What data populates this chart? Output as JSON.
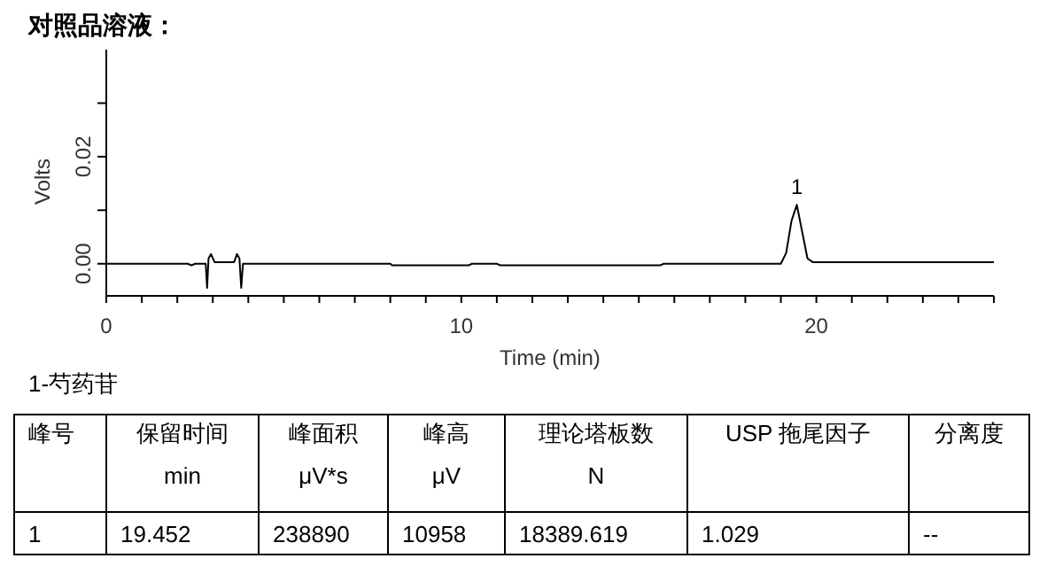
{
  "chart_data": {
    "type": "line",
    "title": "对照品溶液：",
    "xlabel": "Time (min)",
    "ylabel": "Volts",
    "x": [
      0,
      2.3,
      2.4,
      2.5,
      2.8,
      2.84,
      2.88,
      2.95,
      3.05,
      3.15,
      3.6,
      3.68,
      3.75,
      3.8,
      3.85,
      8,
      8.05,
      10.2,
      10.3,
      11,
      11.1,
      13.5,
      15.6,
      15.7,
      19.0,
      19.15,
      19.3,
      19.45,
      19.6,
      19.75,
      19.9,
      20.5,
      25
    ],
    "series": [
      {
        "color": "#000000",
        "values": [
          0,
          0,
          -0.0003,
          0,
          0,
          -0.0045,
          0.001,
          0.0018,
          0.0003,
          0.0003,
          0.0003,
          0.0018,
          0.001,
          -0.0045,
          0,
          0,
          -0.0003,
          -0.0003,
          0,
          0,
          -0.0003,
          -0.0003,
          -0.0003,
          0,
          0,
          0.002,
          0.008,
          0.011,
          0.006,
          0.001,
          0.0003,
          0.0003,
          0.0003
        ]
      }
    ],
    "xlim": [
      0,
      25
    ],
    "xticks": [
      0,
      {
        "value": 1,
        "label": null
      },
      {
        "value": 2,
        "label": null
      },
      {
        "value": 3,
        "label": null
      },
      {
        "value": 4,
        "label": null
      },
      {
        "value": 5,
        "label": null
      },
      {
        "value": 6,
        "label": null
      },
      {
        "value": 7,
        "label": null
      },
      {
        "value": 8,
        "label": null
      },
      {
        "value": 9,
        "label": null
      },
      10,
      {
        "value": 11,
        "label": null
      },
      {
        "value": 12,
        "label": null
      },
      {
        "value": 13,
        "label": null
      },
      {
        "value": 14,
        "label": null
      },
      {
        "value": 15,
        "label": null
      },
      {
        "value": 16,
        "label": null
      },
      {
        "value": 17,
        "label": null
      },
      {
        "value": 18,
        "label": null
      },
      {
        "value": 19,
        "label": null
      },
      20,
      {
        "value": 21,
        "label": null
      },
      {
        "value": 22,
        "label": null
      },
      {
        "value": 23,
        "label": null
      },
      {
        "value": 24,
        "label": null
      },
      {
        "value": 25,
        "label": null
      }
    ],
    "ylim": [
      -0.006,
      0.04
    ],
    "yticks": [
      {
        "value": 0,
        "label": "0.00"
      },
      {
        "value": 0.01,
        "label": null
      },
      {
        "value": 0.02,
        "label": "0.02"
      },
      {
        "value": 0.03,
        "label": null
      }
    ],
    "grid": false,
    "marker": "none",
    "line_style": "solid",
    "annotations": [
      {
        "text": "1",
        "x": 19.452,
        "y": 0.011
      },
      "1-芍药苷",
      "峰号",
      "保留时间\nmin",
      "峰面积\nμV*s",
      "峰高\nμV",
      "理论塔板数\nN",
      "USP 拖尾因子",
      "分离度",
      "1",
      "19.452",
      "238890",
      "10958",
      "18389.619",
      "1.029",
      "--"
    ]
  }
}
